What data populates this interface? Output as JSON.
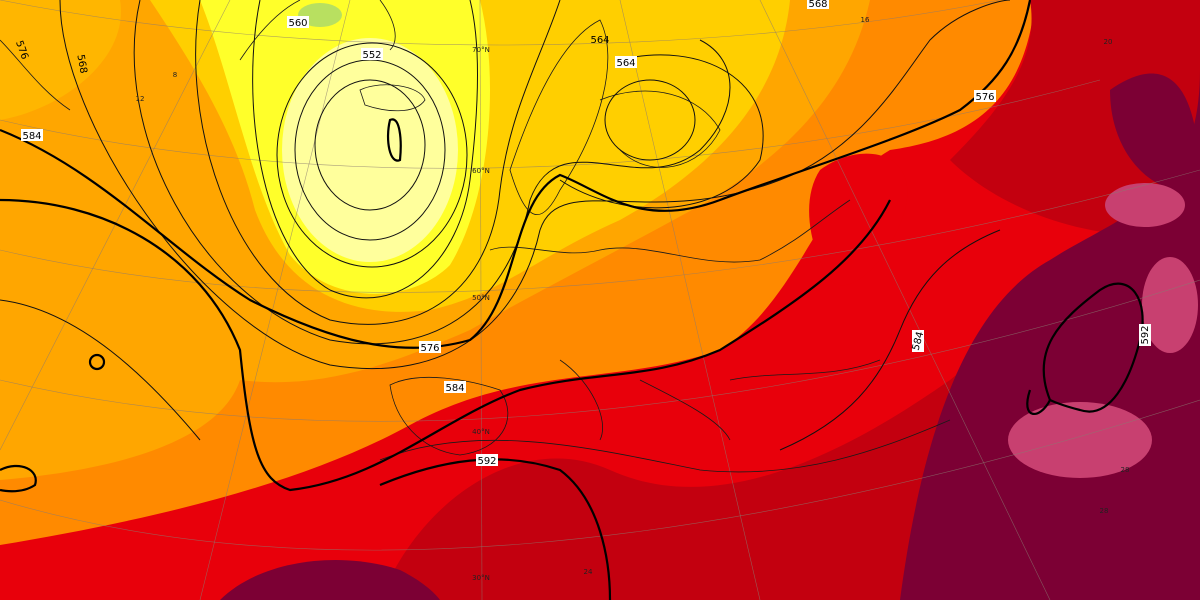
{
  "map": {
    "contour_labels": [
      "560",
      "552",
      "564",
      "568",
      "576",
      "584",
      "568",
      "564",
      "576",
      "576",
      "584",
      "592",
      "584",
      "592"
    ],
    "latitude_labels": [
      "70°N",
      "60°N",
      "50°N",
      "40°N",
      "30°N"
    ],
    "temperature_labels": [
      "8",
      "12",
      "16",
      "20",
      "28",
      "24",
      "28"
    ]
  }
}
